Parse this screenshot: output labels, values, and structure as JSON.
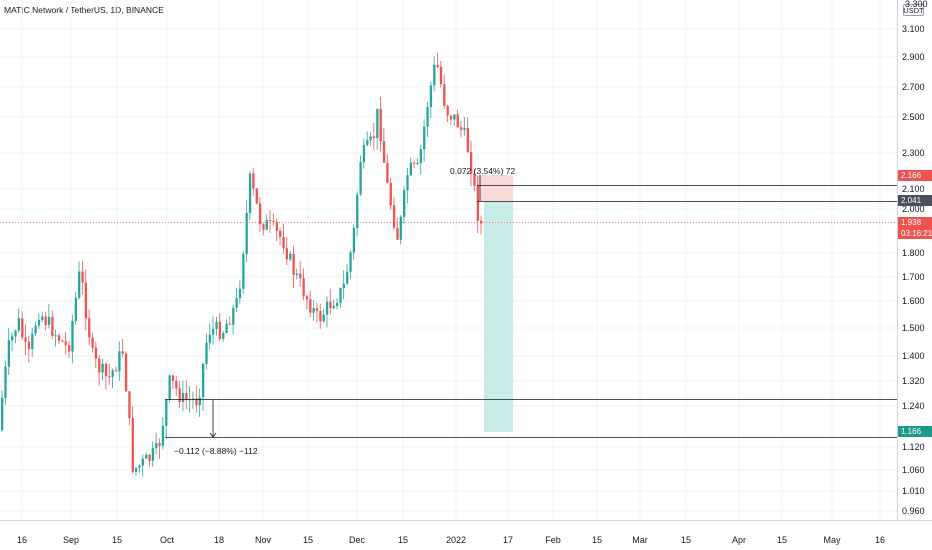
{
  "header": {
    "title": "MATIC Network / TetherUS, 1D, BINANCE",
    "currency_badge": "USDT",
    "top_price_label": "3.300"
  },
  "price_axis": {
    "ticks": [
      "3.100",
      "2.900",
      "2.700",
      "2.500",
      "2.300",
      "2.100",
      "2.000",
      "1.800",
      "1.700",
      "1.600",
      "1.500",
      "1.400",
      "1.320",
      "1.240",
      "1.120",
      "1.060",
      "1.010",
      "0.960"
    ]
  },
  "time_axis": {
    "ticks": [
      "16",
      "Sep",
      "15",
      "Oct",
      "18",
      "Nov",
      "15",
      "Dec",
      "15",
      "2022",
      "17",
      "Feb",
      "15",
      "Mar",
      "15",
      "Apr",
      "15",
      "May",
      "16"
    ]
  },
  "price_labels": {
    "stop": "2.166",
    "entry": "2.041",
    "current": "1.938",
    "countdown": "03:16:21",
    "target": "1.166"
  },
  "annotations": {
    "upper_measure": "0.072 (3.54%) 72",
    "lower_measure": "−0.112 (−8.88%) −112"
  },
  "colors": {
    "up": "#26a69a",
    "down": "#ef5350",
    "stop_zone": "#f9cfcf",
    "target_zone": "#c8ebe8",
    "current_price": "#ef5350",
    "entry_badge": "#4a4e5a",
    "target_badge": "#1e9a8a"
  }
}
